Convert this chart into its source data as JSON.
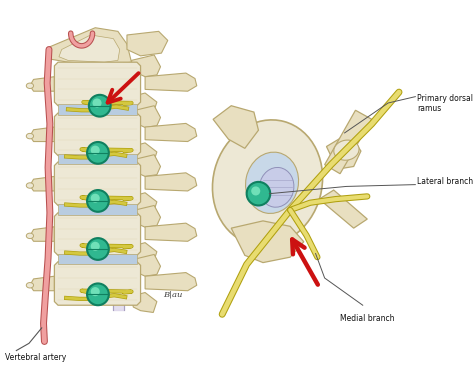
{
  "background_color": "#ffffff",
  "labels": {
    "vertebral_artery": "Vertebral artery",
    "primary_dorsal_ramus": "Primary dorsal\nramus",
    "lateral_branch": "Lateral branch",
    "medial_branch": "Medial branch"
  },
  "colors": {
    "bone": "#e8dfc0",
    "bone_mid": "#d4c89a",
    "bone_dark": "#b8a870",
    "bone_shadow": "#c8b880",
    "bone_inner": "#ede8d5",
    "nerve_yellow": "#d4c840",
    "nerve_light": "#e8dc70",
    "nerve_dark": "#b0a010",
    "artery_red": "#e07878",
    "artery_light": "#f0a0a0",
    "artery_dark": "#b85050",
    "ganglion_green": "#30b890",
    "ganglion_dark": "#108060",
    "ganglion_inner": "#70e0b8",
    "spinal_cord": "#d8d0e8",
    "disc_blue": "#b8cce0",
    "disc_stripe": "#7890b8",
    "arrow_red": "#cc1111",
    "label_line": "#555555",
    "text_color": "#111111",
    "white": "#ffffff",
    "skin_pink": "#e8c0a8",
    "facet": "#d0c8b0",
    "foramen_fill": "#c8d8e8"
  }
}
